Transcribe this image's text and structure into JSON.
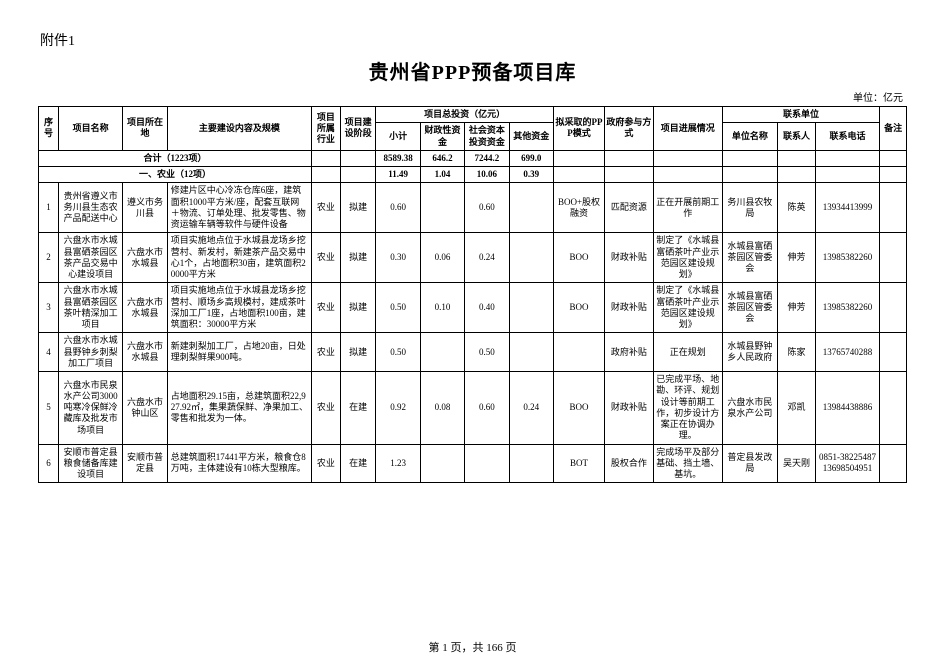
{
  "attachment_label": "附件1",
  "doc_title": "贵州省PPP预备项目库",
  "unit_label": "单位：亿元",
  "header": {
    "seq": "序号",
    "proj_name": "项目名称",
    "location": "项目所在地",
    "desc": "主要建设内容及规模",
    "industry": "项目所属行业",
    "stage": "项目建设阶段",
    "total_invest": "项目总投资（亿元）",
    "subtotal": "小计",
    "fiscal": "财政性资金",
    "social": "社会资本投资资金",
    "other": "其他资金",
    "ppp_mode": "拟采取的PPP模式",
    "gov_part": "政府参与方式",
    "progress": "项目进展情况",
    "contact_unit_group": "联系单位",
    "unit_name": "单位名称",
    "person": "联系人",
    "phone": "联系电话",
    "remark": "备注"
  },
  "summary": {
    "label": "合计（1223项）",
    "subtotal": "8589.38",
    "fiscal": "646.2",
    "social": "7244.2",
    "other": "699.0"
  },
  "section": {
    "label": "一、农业（12项）",
    "subtotal": "11.49",
    "fiscal": "1.04",
    "social": "10.06",
    "other": "0.39"
  },
  "rows": [
    {
      "seq": "1",
      "name": "贵州省遵义市务川县生态农产品配送中心",
      "loc": "遵义市务川县",
      "desc": "修建片区中心冷冻仓库6座，建筑面积1000平方米/座，配套互联网＋物流、订单处理、批发零售、物资运输车辆等软件与硬件设备",
      "ind": "农业",
      "stage": "拟建",
      "sub": "0.60",
      "fisc": "",
      "soc": "0.60",
      "oth": "",
      "mode": "BOO+股权融资",
      "gov": "匹配资源",
      "prog": "正在开展前期工作",
      "unit": "务川县农牧局",
      "person": "陈英",
      "phone": "13934413999",
      "remark": ""
    },
    {
      "seq": "2",
      "name": "六盘水市水城县富硒茶园区茶产品交易中心建设项目",
      "loc": "六盘水市水城县",
      "desc": "项目实施地点位于水城县龙场乡挖营村、新发村，新建茶产品交易中心1个，占地面积30亩，建筑面积20000平方米",
      "ind": "农业",
      "stage": "拟建",
      "sub": "0.30",
      "fisc": "0.06",
      "soc": "0.24",
      "oth": "",
      "mode": "BOO",
      "gov": "财政补贴",
      "prog": "制定了《水城县富硒茶叶产业示范园区建设规划》",
      "unit": "水城县富硒茶园区管委会",
      "person": "伸芳",
      "phone": "13985382260",
      "remark": ""
    },
    {
      "seq": "3",
      "name": "六盘水市水城县富硒茶园区茶叶精深加工项目",
      "loc": "六盘水市水城县",
      "desc": "项目实施地点位于水城县龙场乡挖营村、顺场乡高规模村，建成茶叶深加工厂1座，占地面积100亩，建筑面积：30000平方米",
      "ind": "农业",
      "stage": "拟建",
      "sub": "0.50",
      "fisc": "0.10",
      "soc": "0.40",
      "oth": "",
      "mode": "BOO",
      "gov": "财政补贴",
      "prog": "制定了《水城县富硒茶叶产业示范园区建设规划》",
      "unit": "水城县富硒茶园区管委会",
      "person": "伸芳",
      "phone": "13985382260",
      "remark": ""
    },
    {
      "seq": "4",
      "name": "六盘水市水城县野钟乡刺梨加工厂项目",
      "loc": "六盘水市水城县",
      "desc": "新建刺梨加工厂，占地20亩，日处理刺梨鲜果900吨。",
      "ind": "农业",
      "stage": "拟建",
      "sub": "0.50",
      "fisc": "",
      "soc": "0.50",
      "oth": "",
      "mode": "",
      "gov": "政府补贴",
      "prog": "正在规划",
      "unit": "水城县野钟乡人民政府",
      "person": "陈家",
      "phone": "13765740288",
      "remark": ""
    },
    {
      "seq": "5",
      "name": "六盘水市民泉水产公司3000吨寒冷保鲜冷藏库及批发市场项目",
      "loc": "六盘水市钟山区",
      "desc": "占地面积29.15亩，总建筑面积22,927.92㎡，集果蔬保鲜、净果加工、零售和批发为一体。",
      "ind": "农业",
      "stage": "在建",
      "sub": "0.92",
      "fisc": "0.08",
      "soc": "0.60",
      "oth": "0.24",
      "mode": "BOO",
      "gov": "财政补贴",
      "prog": "已完成平场、地勘、环评、规划设计等前期工作，初步设计方案正在协调办理。",
      "unit": "六盘水市民泉水产公司",
      "person": "邓凯",
      "phone": "13984438886",
      "remark": ""
    },
    {
      "seq": "6",
      "name": "安顺市普定县粮食储备库建设项目",
      "loc": "安顺市普定县",
      "desc": "总建筑面积17441平方米，粮食仓8万吨，主体建设有10栋大型粮库。",
      "ind": "农业",
      "stage": "在建",
      "sub": "1.23",
      "fisc": "",
      "soc": "",
      "oth": "",
      "mode": "BOT",
      "gov": "股权合作",
      "prog": "完成场平及部分基础、挡土墙、基坑。",
      "unit": "普定县发改局",
      "person": "吴天刚",
      "phone": "0851-38225487 13698504951",
      "remark": ""
    }
  ],
  "pager": {
    "page": "1",
    "total": "166",
    "sep_a": "第 ",
    "sep_b": " 页，共 ",
    "sep_c": " 页"
  }
}
